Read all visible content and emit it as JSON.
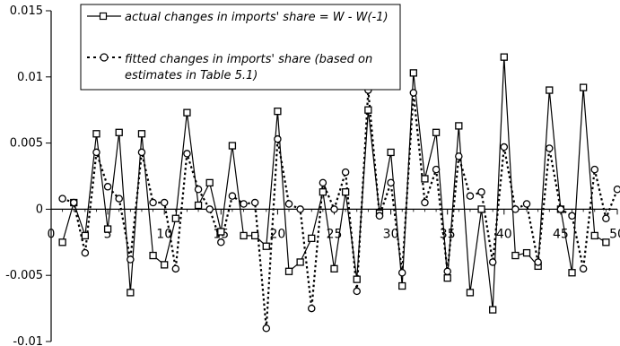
{
  "chart_data": {
    "type": "line",
    "title": "",
    "xlabel": "",
    "ylabel": "",
    "xlim": [
      0,
      50
    ],
    "ylim": [
      -0.01,
      0.015
    ],
    "yticks": [
      "0.015",
      "0.01",
      "0.005",
      "0",
      "-0.005",
      "-0.01"
    ],
    "yticks_values": [
      0.015,
      0.01,
      0.005,
      0,
      -0.005,
      -0.01
    ],
    "xticks": [
      "0",
      "5",
      "10",
      "15",
      "20",
      "25",
      "30",
      "35",
      "40",
      "45",
      "50"
    ],
    "xticks_values": [
      0,
      5,
      10,
      15,
      20,
      25,
      30,
      35,
      40,
      45,
      50
    ],
    "grid": false,
    "legend": {
      "placement": "top-left",
      "entries": [
        {
          "line1": "actual changes in imports' share = W - W(-1)"
        },
        {
          "line1": "fitted changes in imports' share (based on",
          "line2": "estimates in Table 5.1)"
        }
      ]
    },
    "x": [
      1,
      2,
      3,
      4,
      5,
      6,
      7,
      8,
      9,
      10,
      11,
      12,
      13,
      14,
      15,
      16,
      17,
      18,
      19,
      20,
      21,
      22,
      23,
      24,
      25,
      26,
      27,
      28,
      29,
      30,
      31,
      32,
      33,
      34,
      35,
      36,
      37,
      38,
      39,
      40,
      41,
      42,
      43,
      44,
      45,
      46,
      47,
      48,
      49,
      50
    ],
    "series": [
      {
        "name": "actual changes in imports' share = W - W(-1)",
        "marker": "square",
        "line": "solid",
        "values": [
          -0.0025,
          0.0005,
          -0.002,
          0.0057,
          -0.0015,
          0.0058,
          -0.0063,
          0.0057,
          -0.0035,
          -0.0042,
          -0.0007,
          0.0073,
          0.0003,
          0.002,
          -0.0017,
          0.0048,
          -0.002,
          -0.002,
          -0.0028,
          0.0074,
          -0.0047,
          -0.004,
          -0.0022,
          0.0013,
          -0.0045,
          0.0013,
          -0.0053,
          0.0075,
          -0.0003,
          0.0043,
          -0.0058,
          0.0103,
          0.0023,
          0.0058,
          -0.0052,
          0.0063,
          -0.0063,
          0.0,
          -0.0076,
          0.0115,
          -0.0035,
          -0.0033,
          -0.0043,
          0.009,
          0.0,
          -0.0048,
          0.0092,
          -0.002,
          -0.0025,
          null
        ]
      },
      {
        "name": "fitted changes in imports' share (based on estimates in Table 5.1)",
        "marker": "circle",
        "line": "dotted",
        "values": [
          0.0008,
          0.0005,
          -0.0033,
          0.0043,
          0.0017,
          0.0008,
          -0.0038,
          0.0043,
          0.0005,
          0.0005,
          -0.0045,
          0.0042,
          0.0015,
          0.0,
          -0.0025,
          0.001,
          0.0004,
          0.0005,
          -0.009,
          0.0053,
          0.0004,
          0.0,
          -0.0075,
          0.002,
          0.0,
          0.0028,
          -0.0062,
          0.009,
          -0.0005,
          0.002,
          -0.0048,
          0.0088,
          0.0005,
          0.003,
          -0.0047,
          0.004,
          0.001,
          0.0013,
          -0.004,
          0.0047,
          0.0,
          0.0004,
          -0.004,
          0.0046,
          0.0,
          -0.0005,
          -0.0045,
          0.003,
          -0.0007,
          0.0015
        ]
      }
    ]
  }
}
